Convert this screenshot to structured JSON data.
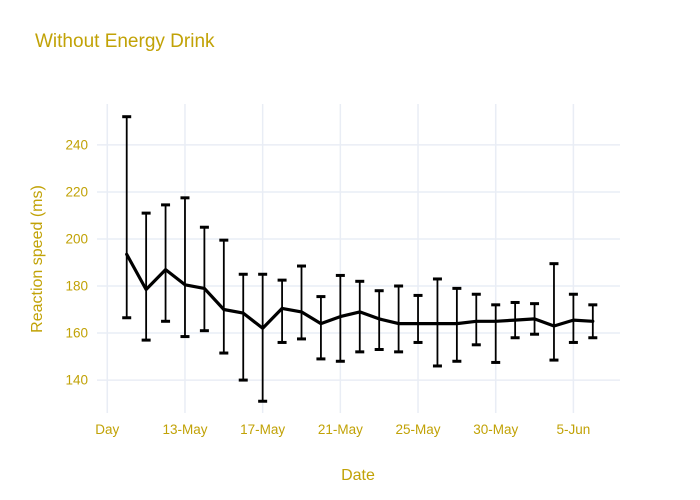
{
  "chart_data": {
    "type": "line",
    "title": "Without Energy Drink",
    "xlabel": "Date",
    "ylabel": "Reaction speed (ms)",
    "legend": "none",
    "grid": true,
    "ylim": [
      126,
      257.4
    ],
    "x_index_range": [
      -0.53,
      26.4
    ],
    "y_ticks": [
      140,
      160,
      180,
      200,
      220,
      240
    ],
    "x_ticks": [
      {
        "pos": 0,
        "label": "Day"
      },
      {
        "pos": 4,
        "label": "13-May"
      },
      {
        "pos": 8,
        "label": "17-May"
      },
      {
        "pos": 12,
        "label": "21-May"
      },
      {
        "pos": 16,
        "label": "25-May"
      },
      {
        "pos": 20,
        "label": "30-May"
      },
      {
        "pos": 24,
        "label": "5-Jun"
      }
    ],
    "series": [
      {
        "name": "Without Energy Drink",
        "x": [
          1,
          2,
          3,
          4,
          5,
          6,
          7,
          8,
          9,
          10,
          11,
          12,
          13,
          14,
          15,
          16,
          17,
          18,
          19,
          20,
          21,
          22,
          23,
          24,
          25
        ],
        "y": [
          193.5,
          178.5,
          187,
          180.5,
          179,
          170,
          168.5,
          162,
          170.5,
          169,
          164,
          167,
          169,
          166,
          164,
          164,
          164,
          164,
          165,
          165,
          165.5,
          166,
          163,
          165.5,
          165
        ],
        "error_upper": [
          252,
          211,
          214.5,
          217.5,
          205,
          199.5,
          185,
          185,
          182.5,
          188.5,
          175.5,
          184.5,
          182,
          178,
          180,
          176,
          183,
          179,
          176.5,
          172,
          173,
          172.5,
          189.5,
          176.5,
          172
        ],
        "error_lower": [
          166.5,
          157,
          165,
          158.5,
          161,
          151.5,
          140,
          131,
          156,
          157.5,
          149,
          148,
          152,
          153,
          152,
          156,
          146,
          148,
          155,
          147.5,
          158,
          159.5,
          148.5,
          156,
          158
        ]
      }
    ],
    "colors": {
      "line": "#000000",
      "error_bar": "#000000",
      "axis_text": "#c1a206",
      "grid": "#e9edf5",
      "background": "#ffffff"
    }
  }
}
